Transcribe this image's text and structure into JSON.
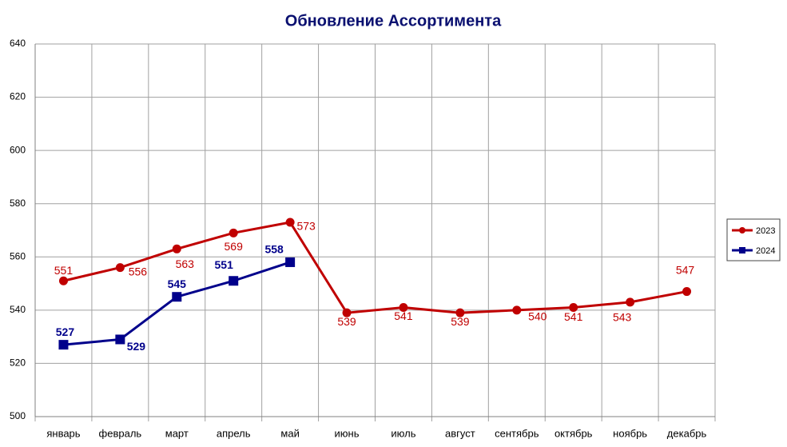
{
  "chart_data": {
    "type": "line",
    "title": "Обновление Ассортимента",
    "categories": [
      "январь",
      "февраль",
      "март",
      "апрель",
      "май",
      "июнь",
      "июль",
      "август",
      "сентябрь",
      "октябрь",
      "ноябрь",
      "декабрь"
    ],
    "series": [
      {
        "name": "2023",
        "color": "#c00000",
        "marker": "circle",
        "values": [
          551,
          556,
          563,
          569,
          573,
          539,
          541,
          539,
          540,
          541,
          543,
          547
        ]
      },
      {
        "name": "2024",
        "color": "#00008b",
        "marker": "square",
        "values": [
          527,
          529,
          545,
          551,
          558,
          null,
          null,
          null,
          null,
          null,
          null,
          null
        ]
      }
    ],
    "ylim": [
      500,
      640
    ],
    "yticks": [
      500,
      520,
      540,
      560,
      580,
      600,
      620,
      640
    ],
    "grid": true,
    "legend": "right"
  }
}
